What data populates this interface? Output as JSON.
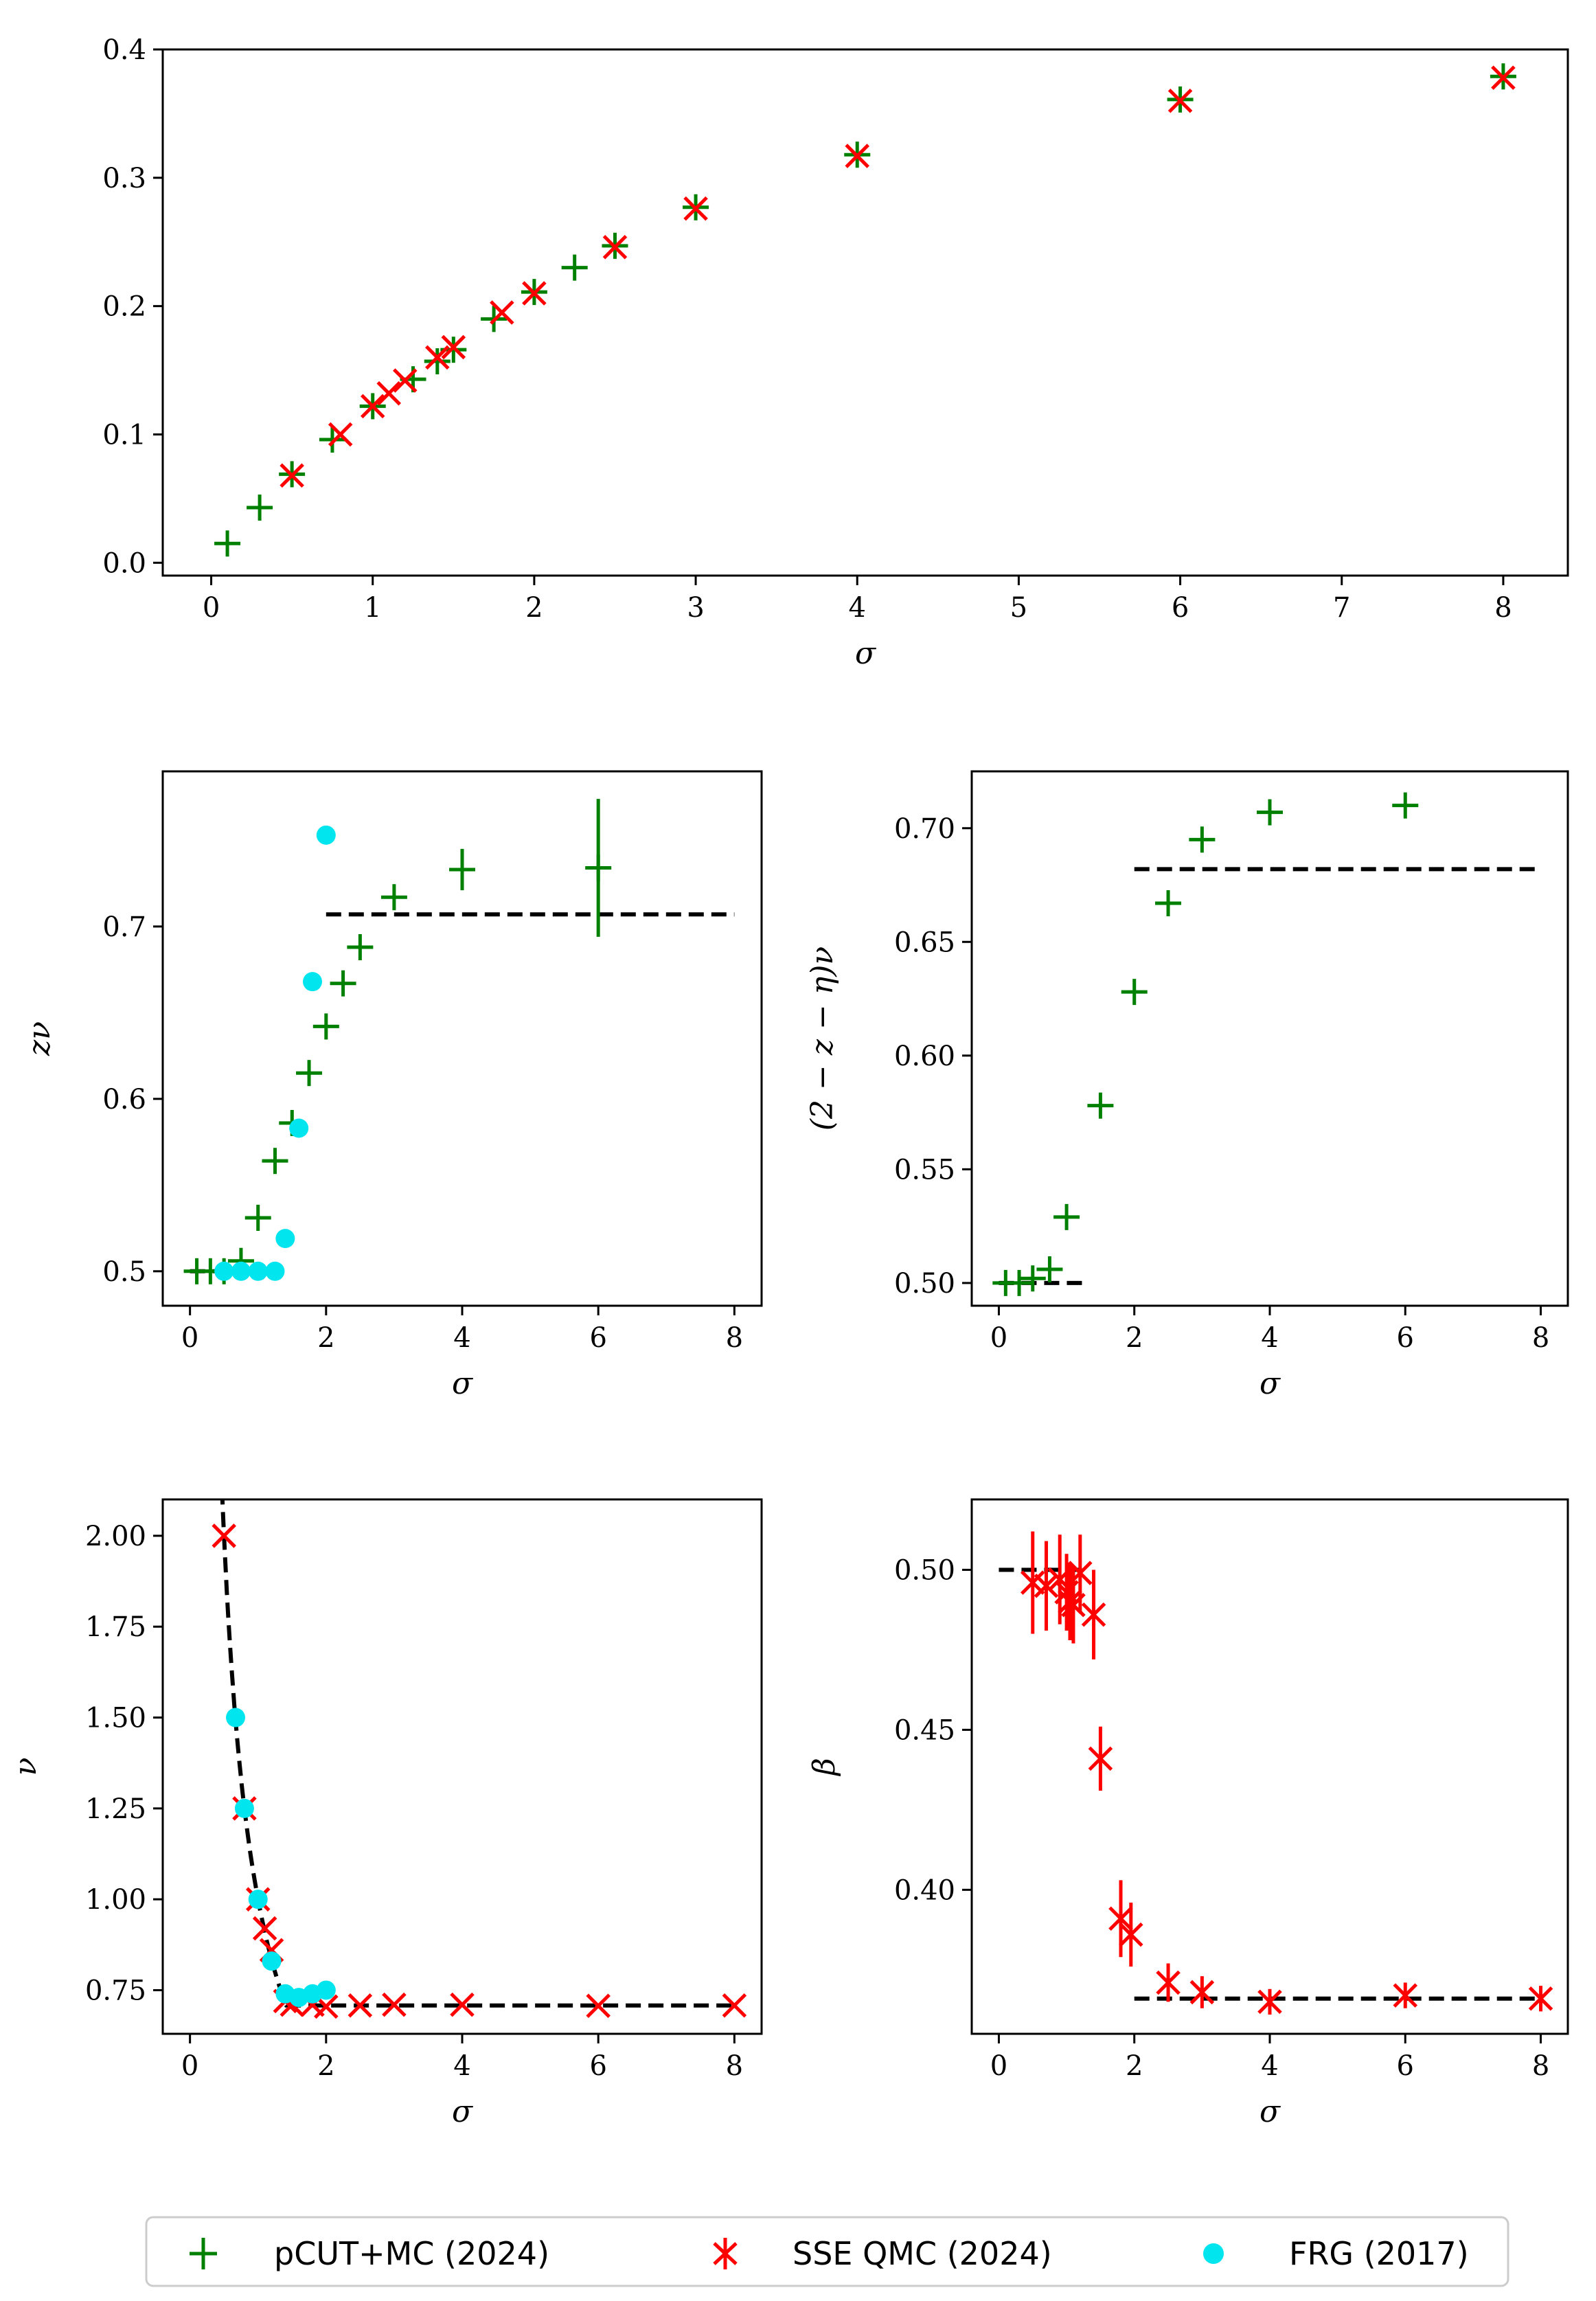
{
  "legend": {
    "items": [
      {
        "label": "pCUT+MC (2024)",
        "marker": "plus",
        "color": "#008000"
      },
      {
        "label": "SSE QMC (2024)",
        "marker": "x",
        "color": "#ff0000"
      },
      {
        "label": "FRG (2017)",
        "marker": "dot",
        "color": "#00e5ee"
      }
    ]
  },
  "chart_data": [
    {
      "id": "panel-top",
      "type": "scatter",
      "title": "",
      "xlabel": "σ",
      "ylabel": "",
      "xlim": [
        -0.3,
        8.4
      ],
      "ylim": [
        -0.01,
        0.4
      ],
      "xticks": [
        0,
        1,
        2,
        3,
        4,
        5,
        6,
        7,
        8
      ],
      "xtick_labels": [
        "0",
        "1",
        "2",
        "3",
        "4",
        "5",
        "6",
        "7",
        "8"
      ],
      "yticks": [
        0.0,
        0.1,
        0.2,
        0.3,
        0.4
      ],
      "ytick_labels": [
        "0.0",
        "0.1",
        "0.2",
        "0.3",
        "0.4"
      ],
      "series": [
        {
          "name": "pCUT+MC (2024)",
          "marker": "plus",
          "color": "#008000",
          "x": [
            0.1,
            0.3,
            0.5,
            0.75,
            1.0,
            1.25,
            1.4,
            1.5,
            1.75,
            2.0,
            2.25,
            2.5,
            3.0,
            4.0,
            6.0,
            8.0
          ],
          "y": [
            0.015,
            0.043,
            0.069,
            0.096,
            0.122,
            0.143,
            0.157,
            0.166,
            0.19,
            0.211,
            0.23,
            0.247,
            0.277,
            0.318,
            0.361,
            0.379
          ]
        },
        {
          "name": "SSE QMC (2024)",
          "marker": "x",
          "color": "#ff0000",
          "x": [
            0.5,
            0.8,
            1.0,
            1.1,
            1.2,
            1.4,
            1.5,
            1.8,
            2.0,
            2.5,
            3.0,
            4.0,
            6.0,
            8.0
          ],
          "y": [
            0.068,
            0.1,
            0.122,
            0.132,
            0.142,
            0.16,
            0.168,
            0.195,
            0.21,
            0.246,
            0.276,
            0.317,
            0.36,
            0.378
          ]
        }
      ]
    },
    {
      "id": "panel-znu",
      "type": "scatter",
      "title": "",
      "xlabel": "σ",
      "ylabel": "zν",
      "xlim": [
        -0.4,
        8.4
      ],
      "ylim": [
        0.48,
        0.79
      ],
      "xticks": [
        0,
        2,
        4,
        6,
        8
      ],
      "xtick_labels": [
        "0",
        "2",
        "4",
        "6",
        "8"
      ],
      "yticks": [
        0.5,
        0.6,
        0.7
      ],
      "ytick_labels": [
        "0.5",
        "0.6",
        "0.7"
      ],
      "reference_lines": [
        {
          "x": [
            0,
            1.33
          ],
          "y": [
            0.5,
            0.5
          ]
        },
        {
          "x": [
            2,
            8
          ],
          "y": [
            0.707,
            0.707
          ]
        }
      ],
      "series": [
        {
          "name": "pCUT+MC (2024)",
          "marker": "plus",
          "color": "#008000",
          "x": [
            0.1,
            0.3,
            0.5,
            0.75,
            1.0,
            1.25,
            1.5,
            1.75,
            2.0,
            2.25,
            2.5,
            3.0,
            4.0,
            6.0
          ],
          "y": [
            0.5,
            0.5,
            0.5,
            0.506,
            0.531,
            0.564,
            0.586,
            0.615,
            0.642,
            0.667,
            0.688,
            0.717,
            0.733,
            0.734
          ],
          "yerr": [
            0,
            0,
            0,
            0,
            0,
            0,
            0,
            0,
            0,
            0,
            0,
            0,
            0.012,
            0.04
          ]
        },
        {
          "name": "FRG (2017)",
          "marker": "dot",
          "color": "#00e5ee",
          "x": [
            0.5,
            0.75,
            1.0,
            1.25,
            1.4,
            1.6,
            1.8,
            2.0
          ],
          "y": [
            0.5,
            0.5,
            0.5,
            0.5,
            0.519,
            0.583,
            0.668,
            0.753
          ]
        }
      ]
    },
    {
      "id": "panel-eta",
      "type": "scatter",
      "title": "",
      "xlabel": "σ",
      "ylabel": "(2 − z − η)ν",
      "xlim": [
        -0.4,
        8.4
      ],
      "ylim": [
        0.49,
        0.725
      ],
      "xticks": [
        0,
        2,
        4,
        6,
        8
      ],
      "xtick_labels": [
        "0",
        "2",
        "4",
        "6",
        "8"
      ],
      "yticks": [
        0.5,
        0.55,
        0.6,
        0.65,
        0.7
      ],
      "ytick_labels": [
        "0.50",
        "0.55",
        "0.60",
        "0.65",
        "0.70"
      ],
      "reference_lines": [
        {
          "x": [
            0,
            1.33
          ],
          "y": [
            0.5,
            0.5
          ]
        },
        {
          "x": [
            2,
            8
          ],
          "y": [
            0.682,
            0.682
          ]
        }
      ],
      "series": [
        {
          "name": "pCUT+MC (2024)",
          "marker": "plus",
          "color": "#008000",
          "x": [
            0.1,
            0.3,
            0.5,
            0.75,
            1.0,
            1.5,
            2.0,
            2.5,
            3.0,
            4.0,
            6.0
          ],
          "y": [
            0.5,
            0.5,
            0.502,
            0.506,
            0.529,
            0.578,
            0.628,
            0.667,
            0.695,
            0.707,
            0.71
          ]
        }
      ]
    },
    {
      "id": "panel-nu",
      "type": "scatter",
      "title": "",
      "xlabel": "σ",
      "ylabel": "ν",
      "xlim": [
        -0.4,
        8.4
      ],
      "ylim": [
        0.63,
        2.1
      ],
      "xticks": [
        0,
        2,
        4,
        6,
        8
      ],
      "xtick_labels": [
        "0",
        "2",
        "4",
        "6",
        "8"
      ],
      "yticks": [
        0.75,
        1.0,
        1.25,
        1.5,
        1.75,
        2.0
      ],
      "ytick_labels": [
        "0.75",
        "1.00",
        "1.25",
        "1.50",
        "1.75",
        "2.00"
      ],
      "reference_curve": "nu = 1/sigma for sigma <= 1.41, then 0.708",
      "series": [
        {
          "name": "SSE QMC (2024)",
          "marker": "x",
          "color": "#ff0000",
          "x": [
            0.5,
            0.8,
            1.0,
            1.1,
            1.2,
            1.4,
            1.5,
            1.8,
            2.0,
            2.5,
            3.0,
            4.0,
            6.0,
            8.0
          ],
          "y": [
            2.0,
            1.25,
            1.0,
            0.92,
            0.86,
            0.72,
            0.71,
            0.71,
            0.705,
            0.708,
            0.71,
            0.71,
            0.707,
            0.708
          ]
        },
        {
          "name": "FRG (2017)",
          "marker": "dot",
          "color": "#00e5ee",
          "x": [
            0.67,
            0.8,
            1.0,
            1.2,
            1.4,
            1.6,
            1.8,
            2.0
          ],
          "y": [
            1.5,
            1.25,
            1.0,
            0.83,
            0.74,
            0.73,
            0.74,
            0.75
          ]
        }
      ]
    },
    {
      "id": "panel-beta",
      "type": "scatter",
      "title": "",
      "xlabel": "σ",
      "ylabel": "β",
      "xlim": [
        -0.4,
        8.4
      ],
      "ylim": [
        0.355,
        0.522
      ],
      "xticks": [
        0,
        2,
        4,
        6,
        8
      ],
      "xtick_labels": [
        "0",
        "2",
        "4",
        "6",
        "8"
      ],
      "yticks": [
        0.4,
        0.45,
        0.5
      ],
      "ytick_labels": [
        "0.40",
        "0.45",
        "0.50"
      ],
      "reference_lines": [
        {
          "x": [
            0,
            1.33
          ],
          "y": [
            0.5,
            0.5
          ]
        },
        {
          "x": [
            2,
            8
          ],
          "y": [
            0.366,
            0.366
          ]
        }
      ],
      "series": [
        {
          "name": "SSE QMC (2024)",
          "marker": "x",
          "color": "#ff0000",
          "x": [
            0.5,
            0.7,
            0.9,
            1.0,
            1.05,
            1.1,
            1.2,
            1.4,
            1.5,
            1.8,
            1.95,
            2.5,
            3.0,
            4.0,
            6.0,
            8.0
          ],
          "y": [
            0.496,
            0.495,
            0.497,
            0.493,
            0.49,
            0.489,
            0.499,
            0.486,
            0.441,
            0.391,
            0.386,
            0.371,
            0.368,
            0.365,
            0.367,
            0.366
          ],
          "yerr": [
            0.016,
            0.014,
            0.014,
            0.012,
            0.012,
            0.012,
            0.012,
            0.014,
            0.01,
            0.012,
            0.01,
            0.006,
            0.005,
            0.004,
            0.004,
            0.004
          ]
        }
      ]
    }
  ]
}
